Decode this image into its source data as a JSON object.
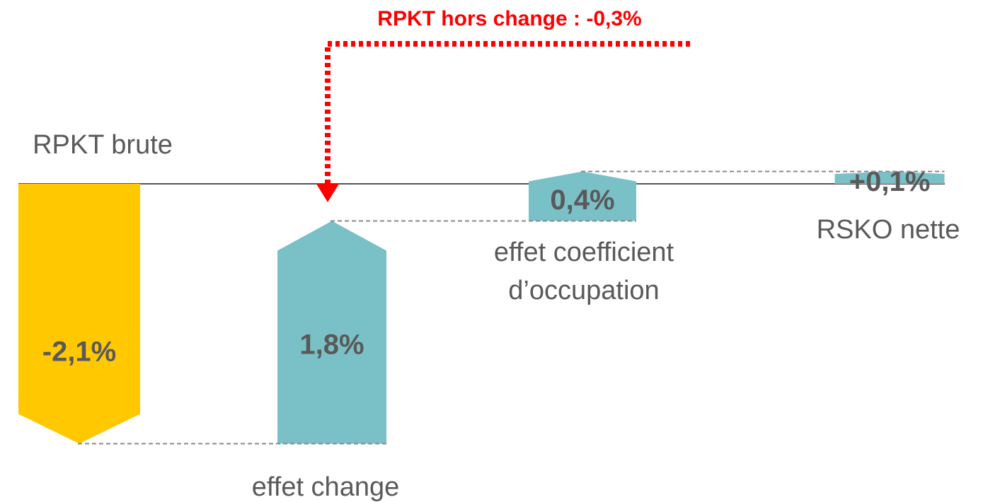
{
  "chart_data": {
    "type": "waterfall",
    "annotation": "RPKT hors change : -0,3%",
    "categories": [
      "RPKT brute",
      "effet change",
      "effet coefficient d’occupation",
      "RSKO nette"
    ],
    "values": [
      -2.1,
      1.8,
      0.4,
      0.1
    ],
    "value_labels": [
      "-2,1%",
      "1,8%",
      "0,4%",
      "+0,1%"
    ],
    "colors": [
      "#ffc800",
      "#7ac0c7",
      "#7ac0c7",
      "#7ac0c7"
    ]
  }
}
